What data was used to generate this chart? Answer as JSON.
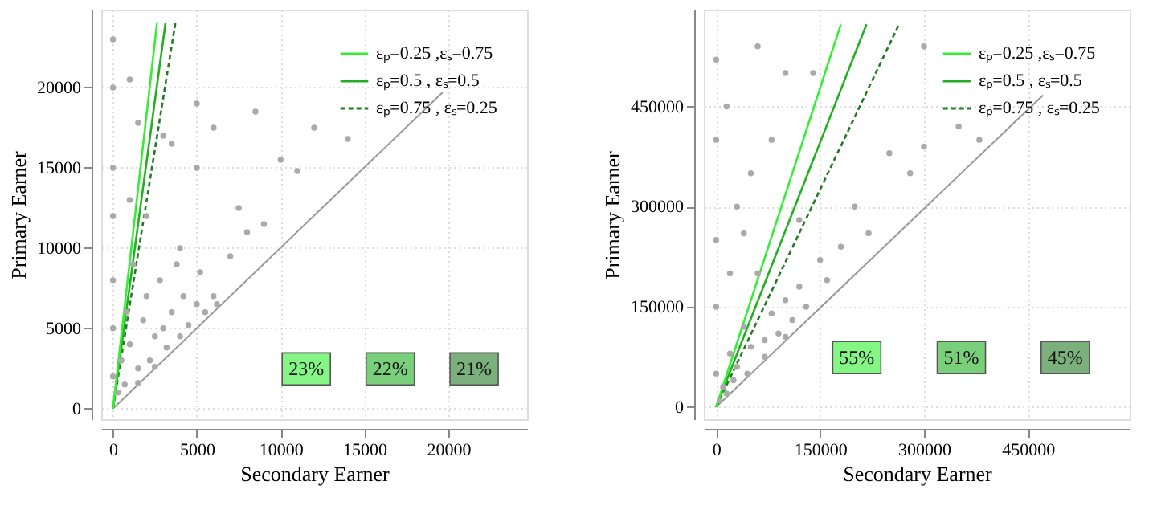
{
  "chart_data": [
    {
      "type": "scatter",
      "xlabel": "Secondary Earner",
      "ylabel": "Primary Earner",
      "xlim": [
        -700,
        24700
      ],
      "ylim": [
        -660,
        24850
      ],
      "xticks": [
        0,
        5000,
        10000,
        15000,
        20000
      ],
      "yticks": [
        0,
        5000,
        10000,
        15000,
        20000
      ],
      "grid": true,
      "legend": "top right",
      "series": [
        {
          "type": "scatter",
          "marker": "circle",
          "color": "#aaaaaa",
          "x": [
            0,
            0,
            0,
            0,
            0,
            0,
            0,
            300,
            500,
            800,
            1000,
            1200,
            1500,
            1800,
            2000,
            2200,
            2500,
            2800,
            3000,
            3200,
            3500,
            3800,
            4000,
            4200,
            4500,
            5000,
            5200,
            5500,
            6000,
            6200,
            7000,
            7500,
            8000,
            9000,
            10000,
            11000,
            12000,
            14000,
            5000,
            3000,
            1500,
            5000,
            2000,
            4000,
            6000,
            1000,
            3500,
            700,
            1500,
            2500,
            1000,
            8500
          ],
          "values": [
            2000,
            5000,
            8000,
            12000,
            15000,
            20000,
            23000,
            1000,
            3000,
            6000,
            4000,
            9000,
            2500,
            5500,
            7000,
            3000,
            4500,
            8000,
            5000,
            3800,
            6000,
            9000,
            4500,
            7000,
            5200,
            6500,
            8500,
            6000,
            7000,
            6500,
            9500,
            12500,
            11000,
            11500,
            15500,
            14800,
            17500,
            16800,
            19000,
            17000,
            17800,
            15000,
            12000,
            10000,
            17500,
            13000,
            16500,
            1500,
            1600,
            2600,
            20500,
            18500
          ]
        },
        {
          "type": "line",
          "name": "εₚ=0.25 ,εₛ=0.75",
          "color": "#33ee33",
          "line_style": "solid",
          "x": [
            0,
            2625
          ],
          "values": [
            0,
            24000
          ]
        },
        {
          "type": "line",
          "name": "εₚ=0.5 , εₛ=0.5",
          "color": "#22b022",
          "line_style": "solid",
          "x": [
            0,
            3130
          ],
          "values": [
            0,
            24000
          ]
        },
        {
          "type": "line",
          "name": "εₚ=0.75 , εₛ=0.25",
          "color": "#237a23",
          "line_style": "dashed",
          "x": [
            0,
            3720
          ],
          "values": [
            0,
            24000
          ]
        },
        {
          "type": "line",
          "color": "#999999",
          "line_style": "solid",
          "x": [
            0,
            19660
          ],
          "values": [
            0,
            19700
          ]
        }
      ],
      "annotations": [
        {
          "text": "23%",
          "x": 11530,
          "y": 2470
        },
        {
          "text": "22%",
          "x": 16540,
          "y": 2470
        },
        {
          "text": "21%",
          "x": 21540,
          "y": 2470
        }
      ]
    },
    {
      "type": "scatter",
      "xlabel": "Secondary Earner",
      "ylabel": "Primary Earner",
      "xlim": [
        -17800,
        597000
      ],
      "ylim": [
        -18400,
        595000
      ],
      "xticks": [
        0,
        150000,
        300000,
        450000
      ],
      "yticks": [
        0,
        150000,
        300000,
        450000
      ],
      "grid": true,
      "legend": "top right",
      "series": [
        {
          "type": "scatter",
          "marker": "circle",
          "color": "#aaaaaa",
          "x": [
            0,
            0,
            0,
            0,
            0,
            10000,
            20000,
            30000,
            40000,
            50000,
            60000,
            70000,
            80000,
            90000,
            100000,
            110000,
            120000,
            130000,
            150000,
            160000,
            180000,
            200000,
            220000,
            250000,
            280000,
            300000,
            350000,
            380000,
            30000,
            50000,
            80000,
            100000,
            60000,
            120000,
            20000,
            40000,
            15000,
            140000,
            300000,
            5000,
            15000,
            25000,
            45000,
            70000,
            100000
          ],
          "values": [
            50000,
            150000,
            250000,
            400000,
            520000,
            30000,
            80000,
            60000,
            120000,
            90000,
            200000,
            100000,
            140000,
            110000,
            160000,
            130000,
            180000,
            150000,
            220000,
            190000,
            240000,
            300000,
            260000,
            380000,
            350000,
            390000,
            420000,
            400000,
            300000,
            350000,
            400000,
            500000,
            540000,
            280000,
            200000,
            260000,
            450000,
            500000,
            540000,
            10000,
            20000,
            40000,
            50000,
            75000,
            105000
          ]
        },
        {
          "type": "line",
          "name": "εₚ=0.25 ,εₛ=0.75",
          "color": "#33ee33",
          "line_style": "solid",
          "x": [
            0,
            180000
          ],
          "values": [
            0,
            573000
          ]
        },
        {
          "type": "line",
          "name": "εₚ=0.5 , εₛ=0.5",
          "color": "#22b022",
          "line_style": "solid",
          "x": [
            0,
            217000
          ],
          "values": [
            0,
            573000
          ]
        },
        {
          "type": "line",
          "name": "εₚ=0.75 , εₛ=0.25",
          "color": "#237a23",
          "line_style": "dashed",
          "x": [
            0,
            264000
          ],
          "values": [
            0,
            573000
          ]
        },
        {
          "type": "line",
          "color": "#999999",
          "line_style": "solid",
          "x": [
            0,
            472000
          ],
          "values": [
            0,
            467000
          ]
        }
      ],
      "annotations": [
        {
          "text": "55%",
          "x": 203000,
          "y": 74000
        },
        {
          "text": "51%",
          "x": 354000,
          "y": 74000
        },
        {
          "text": "45%",
          "x": 504000,
          "y": 74000
        }
      ]
    }
  ]
}
